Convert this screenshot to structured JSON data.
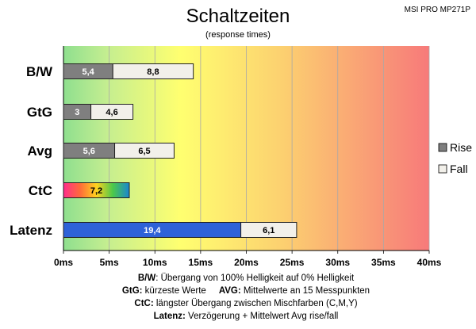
{
  "header": {
    "title": "Schaltzeiten",
    "subtitle": "(response times)",
    "model": "MSI PRO MP271P"
  },
  "chart_data": {
    "type": "bar",
    "orientation": "horizontal",
    "stacked": true,
    "title": "Schaltzeiten",
    "subtitle": "(response times)",
    "categories": [
      "B/W",
      "GtG",
      "Avg",
      "CtC",
      "Latenz"
    ],
    "x_ticks": [
      "0ms",
      "5ms",
      "10ms",
      "15ms",
      "20ms",
      "25ms",
      "30ms",
      "35ms",
      "40ms"
    ],
    "xlim": [
      0,
      40
    ],
    "grid": true,
    "background": "gradient green-yellow-red",
    "legend": {
      "position": "right",
      "entries": [
        "Rise",
        "Fall"
      ]
    },
    "series": [
      {
        "name": "Rise",
        "values": [
          5.4,
          3,
          5.6,
          null,
          19.4
        ],
        "labels": [
          "5,4",
          "3",
          "5,6",
          null,
          "19,4"
        ]
      },
      {
        "name": "Fall",
        "values": [
          8.8,
          4.6,
          6.5,
          null,
          6.1
        ],
        "labels": [
          "8,8",
          "4,6",
          "6,5",
          null,
          "6,1"
        ]
      },
      {
        "name": "CtC",
        "values": [
          null,
          null,
          null,
          7.2,
          null
        ],
        "labels": [
          null,
          null,
          null,
          "7,2",
          null
        ]
      }
    ]
  },
  "colors": {
    "rise": "#7f7f7f",
    "fall": "#f2f0ea",
    "latenz_rise": "#2e62d8",
    "bg_green": "#8fdf8f",
    "bg_yellow": "#ffff70",
    "bg_red": "#f77a7a"
  },
  "notes": {
    "line1_label": "B/W",
    "line1_text": ":  Übergang von 100% Helligkeit auf 0% Helligkeit",
    "line2_label_a": "GtG:",
    "line2_text_a": " kürzeste  Werte",
    "line2_label_b": "AVG:",
    "line2_text_b": " Mittelwerte  an 15 Messpunkten",
    "line3_label": "CtC:",
    "line3_text": " längster Übergang  zwischen Mischfarben  (C,M,Y)",
    "line4_label": "Latenz:",
    "line4_text": " Verzögerung  + Mittelwert  Avg rise/fall"
  }
}
